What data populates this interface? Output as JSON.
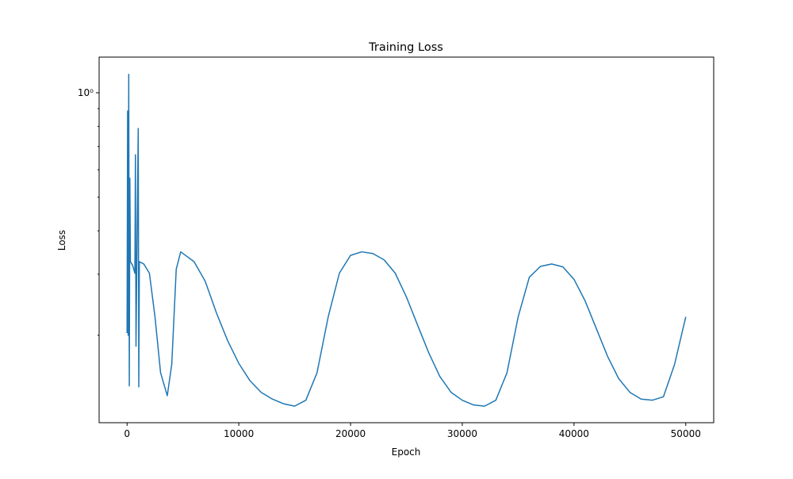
{
  "chart_data": {
    "type": "line",
    "title": "Training Loss",
    "x_label": "Epoch",
    "y_label": "Loss",
    "x": [
      0,
      50,
      100,
      150,
      200,
      250,
      300,
      500,
      700,
      750,
      800,
      1000,
      1050,
      1100,
      1500,
      2000,
      2500,
      3000,
      3600,
      4000,
      4400,
      4800,
      6000,
      7000,
      8000,
      9000,
      10000,
      11000,
      12000,
      13000,
      14000,
      15000,
      16000,
      17000,
      18000,
      19000,
      20000,
      21000,
      22000,
      23000,
      24000,
      25000,
      26000,
      27000,
      28000,
      29000,
      30000,
      31000,
      32000,
      33000,
      34000,
      35000,
      36000,
      37000,
      38000,
      39000,
      40000,
      41000,
      42000,
      43000,
      44000,
      45000,
      46000,
      47000,
      48000,
      49000,
      50000
    ],
    "series": [
      {
        "name": "Loss",
        "color": "#1f77b4",
        "values": [
          0.203,
          0.886,
          0.2,
          1.13,
          0.143,
          0.567,
          0.326,
          0.318,
          0.302,
          0.663,
          0.186,
          0.789,
          0.142,
          0.326,
          0.321,
          0.302,
          0.226,
          0.156,
          0.134,
          0.165,
          0.31,
          0.348,
          0.326,
          0.286,
          0.232,
          0.193,
          0.166,
          0.148,
          0.137,
          0.131,
          0.127,
          0.125,
          0.13,
          0.156,
          0.226,
          0.302,
          0.34,
          0.348,
          0.344,
          0.33,
          0.302,
          0.258,
          0.214,
          0.178,
          0.152,
          0.137,
          0.13,
          0.126,
          0.125,
          0.13,
          0.156,
          0.226,
          0.294,
          0.316,
          0.321,
          0.315,
          0.29,
          0.251,
          0.209,
          0.174,
          0.15,
          0.137,
          0.131,
          0.13,
          0.133,
          0.165,
          0.226
        ]
      }
    ],
    "xlim": [
      -2500,
      52500
    ],
    "xticks": [
      0,
      10000,
      20000,
      30000,
      40000,
      50000
    ],
    "ylim": [
      0.112,
      1.267
    ],
    "yscale": "log",
    "yticks": [
      {
        "value": 1,
        "label": "10⁰"
      }
    ],
    "yminorticks": [
      0.2,
      0.3,
      0.4,
      0.5,
      0.6,
      0.7,
      0.8,
      0.9
    ],
    "grid": false
  }
}
